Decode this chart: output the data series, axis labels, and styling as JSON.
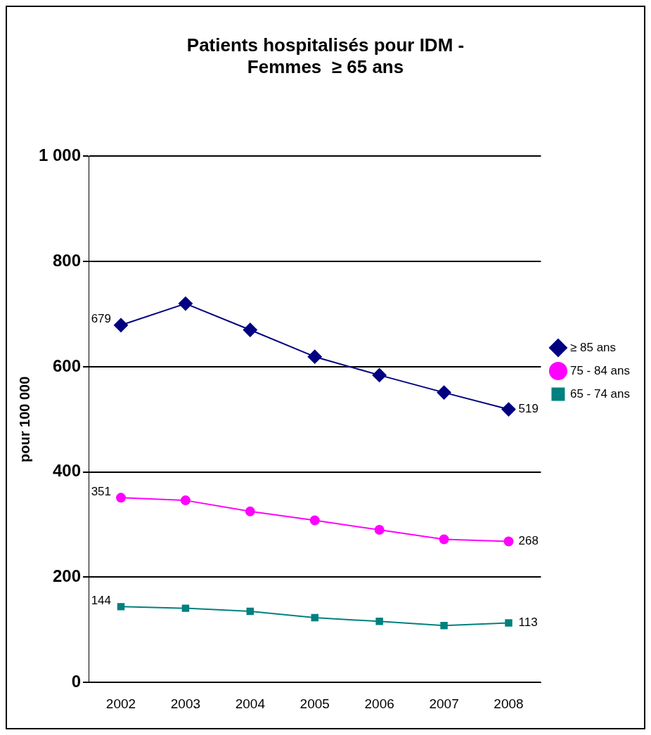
{
  "chart_data": {
    "type": "line",
    "title": "Patients hospitalisés pour IDM -\nFemmes  ≥ 65 ans",
    "ylabel": "pour 100 000",
    "categories": [
      "2002",
      "2003",
      "2004",
      "2005",
      "2006",
      "2007",
      "2008"
    ],
    "series": [
      {
        "name": "≥ 85 ans",
        "color": "#000080",
        "marker": "diamond",
        "values": [
          679,
          720,
          670,
          619,
          584,
          551,
          519
        ],
        "value_labels": [
          "679",
          null,
          null,
          null,
          null,
          null,
          "519"
        ]
      },
      {
        "name": "75 - 84 ans",
        "color": "#ff00ff",
        "marker": "circle",
        "values": [
          351,
          346,
          325,
          308,
          290,
          272,
          268
        ],
        "value_labels": [
          "351",
          null,
          null,
          null,
          null,
          null,
          "268"
        ]
      },
      {
        "name": "65 - 74 ans",
        "color": "#008080",
        "marker": "square",
        "values": [
          144,
          141,
          135,
          123,
          116,
          108,
          113
        ],
        "value_labels": [
          "144",
          null,
          null,
          null,
          null,
          null,
          "113"
        ]
      }
    ],
    "ylim": [
      0,
      1000
    ],
    "yticks": [
      0,
      200,
      400,
      600,
      800,
      {
        "value": 1000,
        "label": "1 000"
      }
    ],
    "grid": "y",
    "legend": "right"
  }
}
